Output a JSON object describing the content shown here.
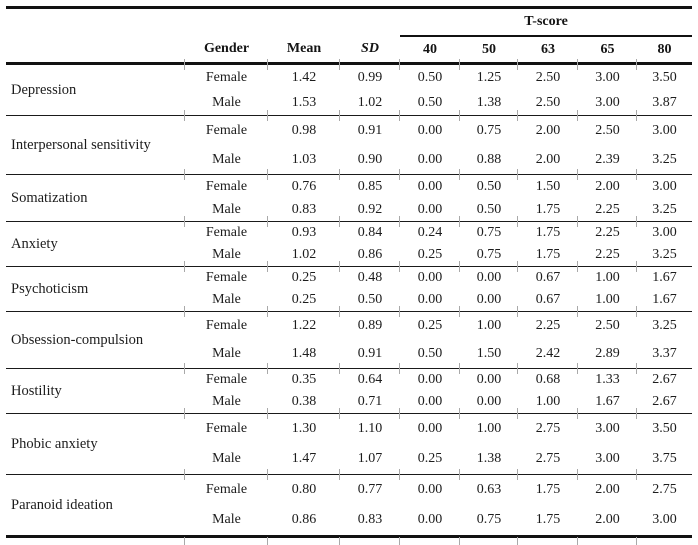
{
  "table": {
    "tscore_header": "T-score",
    "columns": {
      "gender": "Gender",
      "mean": "Mean",
      "sd": "SD",
      "tscores": [
        "40",
        "50",
        "63",
        "65",
        "80"
      ]
    },
    "rows": [
      {
        "category": "Depression",
        "entries": [
          {
            "gender": "Female",
            "mean": "1.42",
            "sd": "0.99",
            "scores": [
              "0.50",
              "1.25",
              "2.50",
              "3.00",
              "3.50"
            ]
          },
          {
            "gender": "Male",
            "mean": "1.53",
            "sd": "1.02",
            "scores": [
              "0.50",
              "1.38",
              "2.50",
              "3.00",
              "3.87"
            ]
          }
        ]
      },
      {
        "category": "Interpersonal sensitivity",
        "entries": [
          {
            "gender": "Female",
            "mean": "0.98",
            "sd": "0.91",
            "scores": [
              "0.00",
              "0.75",
              "2.00",
              "2.50",
              "3.00"
            ]
          },
          {
            "gender": "Male",
            "mean": "1.03",
            "sd": "0.90",
            "scores": [
              "0.00",
              "0.88",
              "2.00",
              "2.39",
              "3.25"
            ]
          }
        ]
      },
      {
        "category": "Somatization",
        "entries": [
          {
            "gender": "Female",
            "mean": "0.76",
            "sd": "0.85",
            "scores": [
              "0.00",
              "0.50",
              "1.50",
              "2.00",
              "3.00"
            ]
          },
          {
            "gender": "Male",
            "mean": "0.83",
            "sd": "0.92",
            "scores": [
              "0.00",
              "0.50",
              "1.75",
              "2.25",
              "3.25"
            ]
          }
        ]
      },
      {
        "category": "Anxiety",
        "entries": [
          {
            "gender": "Female",
            "mean": "0.93",
            "sd": "0.84",
            "scores": [
              "0.24",
              "0.75",
              "1.75",
              "2.25",
              "3.00"
            ]
          },
          {
            "gender": "Male",
            "mean": "1.02",
            "sd": "0.86",
            "scores": [
              "0.25",
              "0.75",
              "1.75",
              "2.25",
              "3.25"
            ]
          }
        ]
      },
      {
        "category": "Psychoticism",
        "entries": [
          {
            "gender": "Female",
            "mean": "0.25",
            "sd": "0.48",
            "scores": [
              "0.00",
              "0.00",
              "0.67",
              "1.00",
              "1.67"
            ]
          },
          {
            "gender": "Male",
            "mean": "0.25",
            "sd": "0.50",
            "scores": [
              "0.00",
              "0.00",
              "0.67",
              "1.00",
              "1.67"
            ]
          }
        ]
      },
      {
        "category": "Obsession-compulsion",
        "entries": [
          {
            "gender": "Female",
            "mean": "1.22",
            "sd": "0.89",
            "scores": [
              "0.25",
              "1.00",
              "2.25",
              "2.50",
              "3.25"
            ]
          },
          {
            "gender": "Male",
            "mean": "1.48",
            "sd": "0.91",
            "scores": [
              "0.50",
              "1.50",
              "2.42",
              "2.89",
              "3.37"
            ]
          }
        ]
      },
      {
        "category": "Hostility",
        "entries": [
          {
            "gender": "Female",
            "mean": "0.35",
            "sd": "0.64",
            "scores": [
              "0.00",
              "0.00",
              "0.68",
              "1.33",
              "2.67"
            ]
          },
          {
            "gender": "Male",
            "mean": "0.38",
            "sd": "0.71",
            "scores": [
              "0.00",
              "0.00",
              "1.00",
              "1.67",
              "2.67"
            ]
          }
        ]
      },
      {
        "category": "Phobic anxiety",
        "entries": [
          {
            "gender": "Female",
            "mean": "1.30",
            "sd": "1.10",
            "scores": [
              "0.00",
              "1.00",
              "2.75",
              "3.00",
              "3.50"
            ]
          },
          {
            "gender": "Male",
            "mean": "1.47",
            "sd": "1.07",
            "scores": [
              "0.25",
              "1.38",
              "2.75",
              "3.00",
              "3.75"
            ]
          }
        ]
      },
      {
        "category": "Paranoid ideation",
        "entries": [
          {
            "gender": "Female",
            "mean": "0.80",
            "sd": "0.77",
            "scores": [
              "0.00",
              "0.63",
              "1.75",
              "2.00",
              "2.75"
            ]
          },
          {
            "gender": "Male",
            "mean": "0.86",
            "sd": "0.83",
            "scores": [
              "0.00",
              "0.75",
              "1.75",
              "2.00",
              "3.00"
            ]
          }
        ]
      }
    ]
  }
}
